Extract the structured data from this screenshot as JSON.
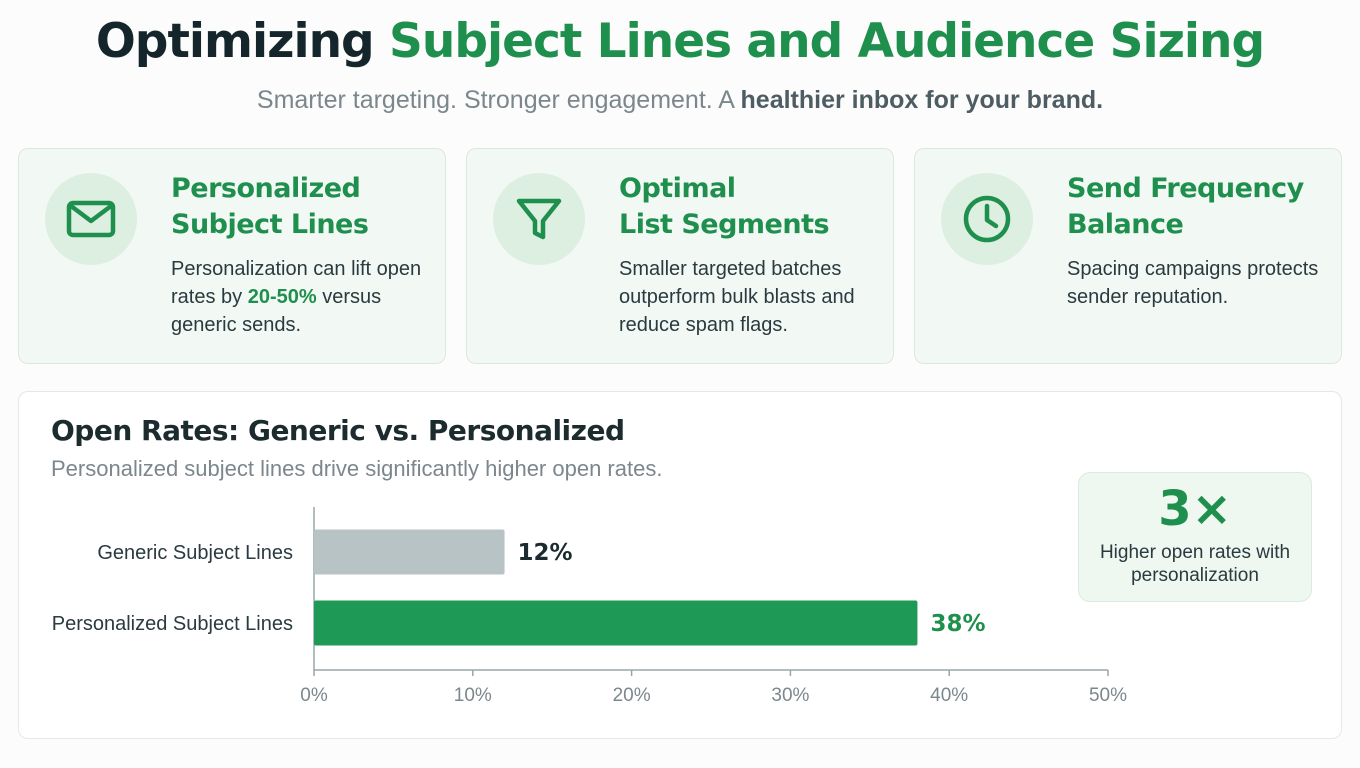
{
  "header": {
    "title_part1": "Optimizing ",
    "title_part2": "Subject Lines and Audience Sizing",
    "subtitle_part1": "Smarter targeting. Stronger engagement. A ",
    "subtitle_part2": "healthier inbox for your brand."
  },
  "cards": [
    {
      "icon": "envelope-icon",
      "title_line1": "Personalized",
      "title_line2": "Subject Lines",
      "body_before": "Personalization can lift open rates by ",
      "body_highlight": "20-50%",
      "body_after": " versus generic sends."
    },
    {
      "icon": "funnel-icon",
      "title_line1": "Optimal",
      "title_line2": "List Segments",
      "body_before": "Smaller targeted batches outperform bulk blasts and reduce spam flags.",
      "body_highlight": "",
      "body_after": ""
    },
    {
      "icon": "clock-icon",
      "title_line1": "Send Frequency",
      "title_line2": "Balance",
      "body_before": "Spacing campaigns protects sender reputation.",
      "body_highlight": "",
      "body_after": ""
    }
  ],
  "stat": {
    "value": "3×",
    "label": "Higher open rates with personalization"
  },
  "colors": {
    "accent": "#1f8f4e",
    "generic_bar": "#b8c3c6",
    "personalized_bar": "#1f9a56"
  },
  "chart_data": {
    "type": "bar",
    "orientation": "horizontal",
    "title": "Open Rates: Generic vs. Personalized",
    "subtitle": "Personalized subject lines drive significantly higher open rates.",
    "categories": [
      "Generic Subject Lines",
      "Personalized Subject Lines"
    ],
    "values": [
      12,
      38
    ],
    "value_labels": [
      "12%",
      "38%"
    ],
    "xlim": [
      0,
      50
    ],
    "ticks": [
      0,
      10,
      20,
      30,
      40,
      50
    ],
    "tick_labels": [
      "0%",
      "10%",
      "20%",
      "30%",
      "40%",
      "50%"
    ],
    "grid": false
  }
}
